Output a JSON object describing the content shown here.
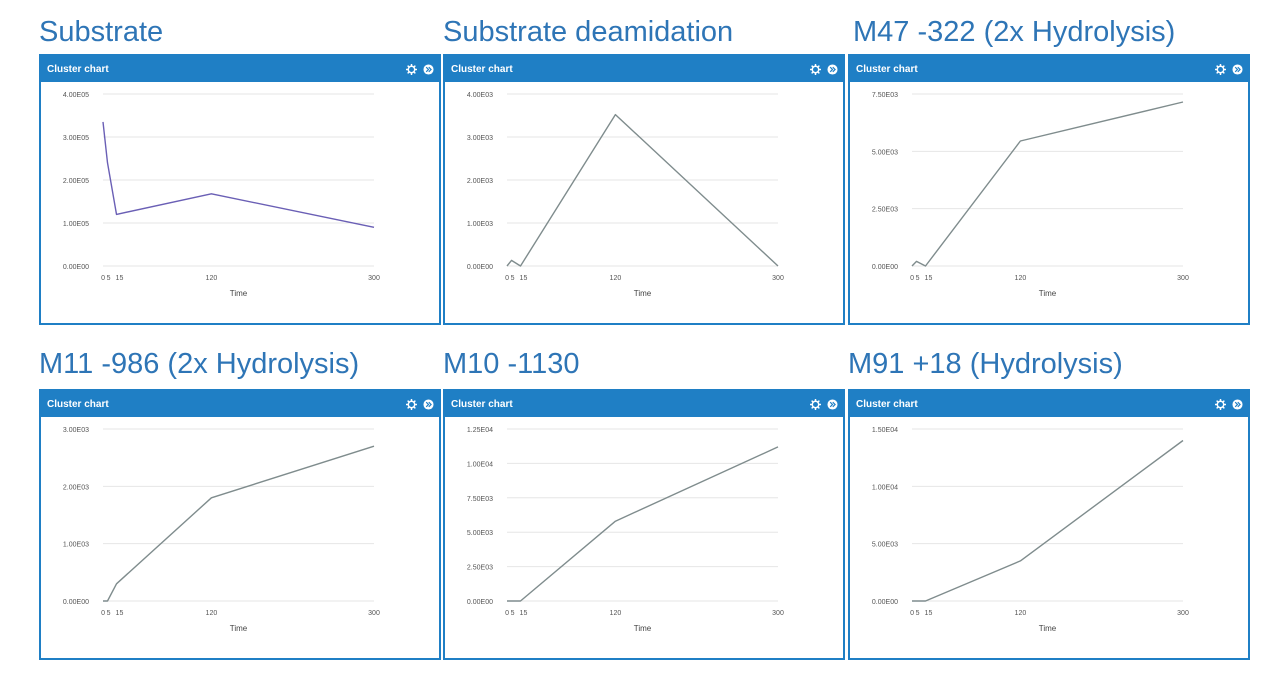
{
  "panel_header": "Cluster chart",
  "icons": [
    "gear-icon",
    "expand-icon"
  ],
  "colors": {
    "header_blue": "#1f7fc5",
    "title_blue": "#2e75b6",
    "line_gray": "#7f8c8d",
    "line_purple": "#6a5fb5",
    "grid": "#e6e6e6"
  },
  "chart_data": [
    {
      "type": "line",
      "title": "Substrate",
      "xlabel": "Time",
      "x": [
        0,
        5,
        15,
        120,
        300
      ],
      "xticks": [
        0,
        5,
        15,
        120,
        300
      ],
      "xtick_labels": [
        "0",
        "5",
        "15",
        "120",
        "300"
      ],
      "xlim": [
        0,
        300
      ],
      "yticks": [
        0,
        100000,
        200000,
        300000,
        400000
      ],
      "ytick_labels": [
        "0.00E00",
        "1.00E05",
        "2.00E05",
        "3.00E05",
        "4.00E05"
      ],
      "ylim": [
        0,
        400000
      ],
      "values": [
        335000,
        240000,
        120000,
        168000,
        90000
      ],
      "color": "#6a5fb5",
      "grid": true
    },
    {
      "type": "line",
      "title": "Substrate deamidation",
      "xlabel": "Time",
      "x": [
        0,
        5,
        15,
        120,
        300
      ],
      "xticks": [
        0,
        5,
        15,
        120,
        300
      ],
      "xtick_labels": [
        "0",
        "5",
        "15",
        "120",
        "300"
      ],
      "xlim": [
        0,
        300
      ],
      "yticks": [
        0,
        1000,
        2000,
        3000,
        4000
      ],
      "ytick_labels": [
        "0.00E00",
        "1.00E03",
        "2.00E03",
        "3.00E03",
        "4.00E03"
      ],
      "ylim": [
        0,
        4000
      ],
      "values": [
        0,
        130,
        0,
        3520,
        0
      ],
      "color": "#7f8c8d",
      "grid": true
    },
    {
      "type": "line",
      "title": "M47 -322 (2x Hydrolysis)",
      "xlabel": "Time",
      "x": [
        0,
        5,
        15,
        120,
        300
      ],
      "xticks": [
        0,
        5,
        15,
        120,
        300
      ],
      "xtick_labels": [
        "0",
        "5",
        "15",
        "120",
        "300"
      ],
      "xlim": [
        0,
        300
      ],
      "yticks": [
        0,
        2500,
        5000,
        7500
      ],
      "ytick_labels": [
        "0.00E00",
        "2.50E03",
        "5.00E03",
        "7.50E03"
      ],
      "ylim": [
        0,
        7500
      ],
      "values": [
        0,
        200,
        0,
        5450,
        7150
      ],
      "color": "#7f8c8d",
      "grid": true
    },
    {
      "type": "line",
      "title": "M11 -986 (2x Hydrolysis)",
      "xlabel": "Time",
      "x": [
        0,
        5,
        15,
        120,
        300
      ],
      "xticks": [
        0,
        5,
        15,
        120,
        300
      ],
      "xtick_labels": [
        "0",
        "5",
        "15",
        "120",
        "300"
      ],
      "xlim": [
        0,
        300
      ],
      "yticks": [
        0,
        1000,
        2000,
        3000
      ],
      "ytick_labels": [
        "0.00E00",
        "1.00E03",
        "2.00E03",
        "3.00E03"
      ],
      "ylim": [
        0,
        3000
      ],
      "values": [
        0,
        0,
        300,
        1800,
        2700
      ],
      "color": "#7f8c8d",
      "grid": true
    },
    {
      "type": "line",
      "title": "M10 -1130",
      "xlabel": "Time",
      "x": [
        0,
        5,
        15,
        120,
        300
      ],
      "xticks": [
        0,
        5,
        15,
        120,
        300
      ],
      "xtick_labels": [
        "0",
        "5",
        "15",
        "120",
        "300"
      ],
      "xlim": [
        0,
        300
      ],
      "yticks": [
        0,
        2500,
        5000,
        7500,
        10000,
        12500
      ],
      "ytick_labels": [
        "0.00E00",
        "2.50E03",
        "5.00E03",
        "7.50E03",
        "1.00E04",
        "1.25E04"
      ],
      "ylim": [
        0,
        12500
      ],
      "values": [
        0,
        0,
        0,
        5800,
        11200
      ],
      "color": "#7f8c8d",
      "grid": true
    },
    {
      "type": "line",
      "title": "M91 +18 (Hydrolysis)",
      "xlabel": "Time",
      "x": [
        0,
        5,
        15,
        120,
        300
      ],
      "xticks": [
        0,
        5,
        15,
        120,
        300
      ],
      "xtick_labels": [
        "0",
        "5",
        "15",
        "120",
        "300"
      ],
      "xlim": [
        0,
        300
      ],
      "yticks": [
        0,
        5000,
        10000,
        15000
      ],
      "ytick_labels": [
        "0.00E00",
        "5.00E03",
        "1.00E04",
        "1.50E04"
      ],
      "ylim": [
        0,
        15000
      ],
      "values": [
        0,
        0,
        0,
        3500,
        14000
      ],
      "color": "#7f8c8d",
      "grid": true
    }
  ]
}
